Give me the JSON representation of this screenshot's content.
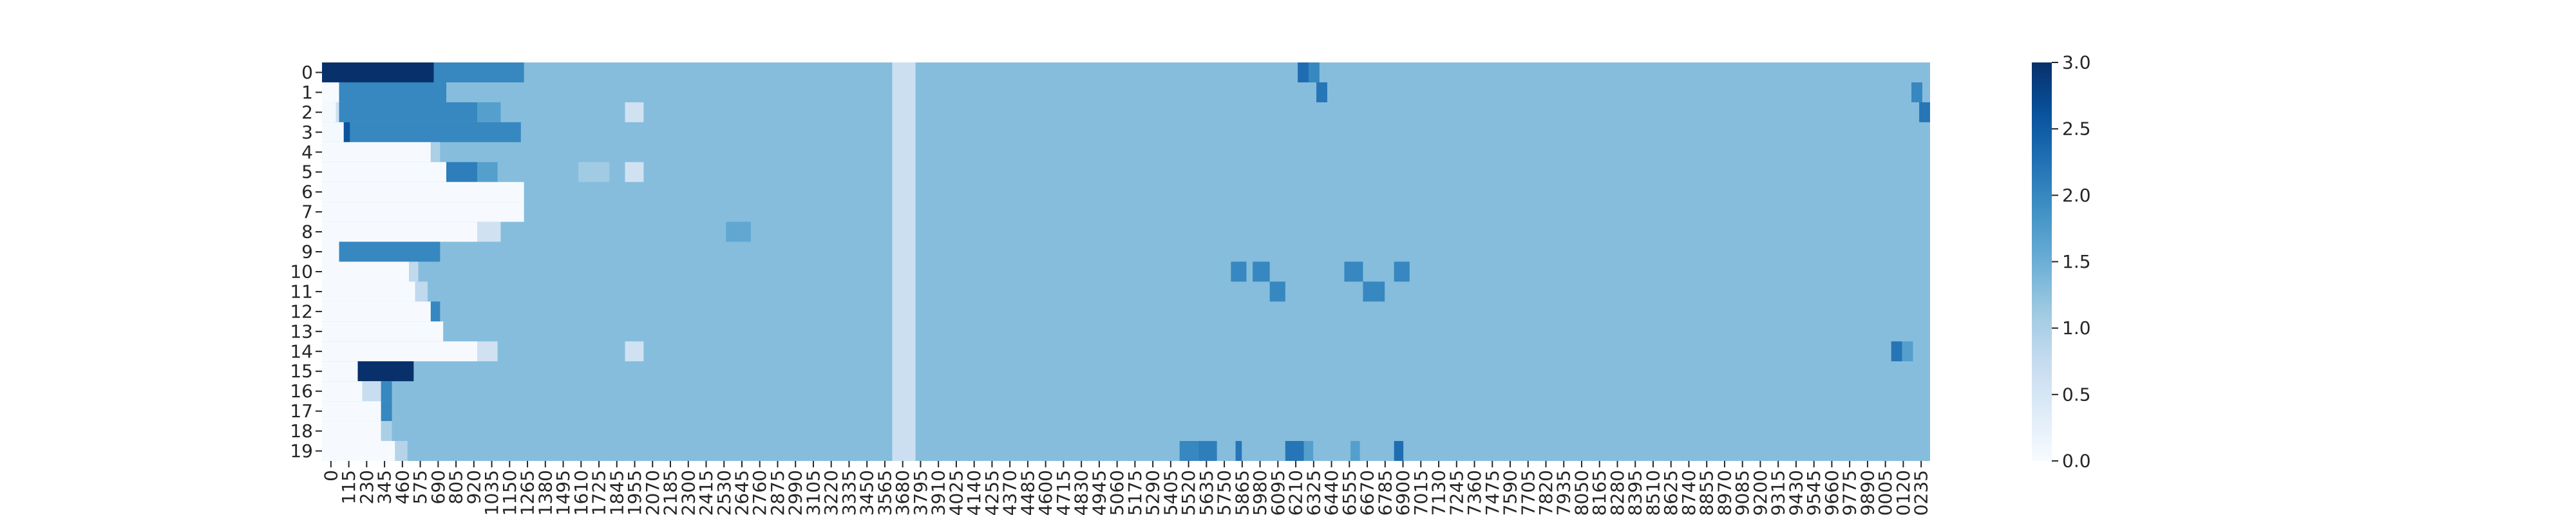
{
  "chart_data": {
    "type": "heatmap",
    "title": "",
    "xlabel": "",
    "ylabel": "",
    "rows": 20,
    "y_ticks": [
      "0",
      "1",
      "2",
      "3",
      "4",
      "5",
      "6",
      "7",
      "8",
      "9",
      "10",
      "11",
      "12",
      "13",
      "14",
      "15",
      "16",
      "17",
      "18",
      "19"
    ],
    "x_ticks": [
      "0",
      "115",
      "230",
      "345",
      "460",
      "575",
      "690",
      "805",
      "920",
      "1035",
      "1150",
      "1265",
      "1380",
      "1495",
      "1610",
      "1725",
      "1845",
      "1955",
      "2070",
      "2185",
      "2300",
      "2415",
      "2530",
      "2645",
      "2760",
      "2875",
      "2990",
      "3105",
      "3220",
      "3335",
      "3450",
      "3565",
      "3680",
      "3795",
      "3910",
      "4025",
      "4140",
      "4255",
      "4370",
      "4485",
      "4600",
      "4715",
      "4830",
      "4945",
      "5060",
      "5175",
      "5290",
      "5405",
      "5520",
      "5635",
      "5750",
      "5865",
      "5980",
      "6095",
      "6210",
      "6325",
      "6440",
      "6555",
      "6670",
      "6785",
      "6900",
      "7015",
      "7130",
      "7245",
      "7360",
      "7475",
      "7590",
      "7705",
      "7820",
      "7935",
      "8050",
      "8165",
      "8280",
      "8395",
      "8510",
      "8625",
      "8740",
      "8855",
      "8970",
      "9085",
      "9200",
      "9315",
      "9430",
      "9545",
      "9660",
      "9775",
      "9890",
      "0005",
      "0120",
      "0235"
    ],
    "x_range": [
      0,
      10350
    ],
    "colorbar": {
      "min": 0.0,
      "max": 3.0,
      "ticks": [
        "0.0",
        "0.5",
        "1.0",
        "1.5",
        "2.0",
        "2.5",
        "3.0"
      ],
      "cmap": "Blues"
    },
    "background_value": 1.3,
    "cells": [
      {
        "row": 0,
        "x0": 0,
        "x1": 720,
        "v": 3.0
      },
      {
        "row": 0,
        "x0": 720,
        "x1": 1300,
        "v": 2.0
      },
      {
        "row": 1,
        "x0": 0,
        "x1": 110,
        "v": 0.0
      },
      {
        "row": 1,
        "x0": 110,
        "x1": 800,
        "v": 2.0
      },
      {
        "row": 2,
        "x0": 0,
        "x1": 90,
        "v": 0.05
      },
      {
        "row": 2,
        "x0": 90,
        "x1": 110,
        "v": 0.6
      },
      {
        "row": 2,
        "x0": 110,
        "x1": 1000,
        "v": 2.0
      },
      {
        "row": 2,
        "x0": 1000,
        "x1": 1150,
        "v": 1.7
      },
      {
        "row": 3,
        "x0": 0,
        "x1": 140,
        "v": 0.05
      },
      {
        "row": 3,
        "x0": 140,
        "x1": 180,
        "v": 2.6
      },
      {
        "row": 3,
        "x0": 180,
        "x1": 1280,
        "v": 2.0
      },
      {
        "row": 4,
        "x0": 0,
        "x1": 700,
        "v": 0.02
      },
      {
        "row": 4,
        "x0": 700,
        "x1": 760,
        "v": 1.0
      },
      {
        "row": 5,
        "x0": 0,
        "x1": 800,
        "v": 0.02
      },
      {
        "row": 5,
        "x0": 800,
        "x1": 1000,
        "v": 2.1
      },
      {
        "row": 5,
        "x0": 1000,
        "x1": 1130,
        "v": 1.7
      },
      {
        "row": 6,
        "x0": 0,
        "x1": 1300,
        "v": 0.02
      },
      {
        "row": 7,
        "x0": 0,
        "x1": 1300,
        "v": 0.02
      },
      {
        "row": 8,
        "x0": 0,
        "x1": 1000,
        "v": 0.02
      },
      {
        "row": 8,
        "x0": 1000,
        "x1": 1150,
        "v": 0.6
      },
      {
        "row": 9,
        "x0": 0,
        "x1": 110,
        "v": 0.02
      },
      {
        "row": 9,
        "x0": 110,
        "x1": 760,
        "v": 2.0
      },
      {
        "row": 10,
        "x0": 0,
        "x1": 560,
        "v": 0.02
      },
      {
        "row": 10,
        "x0": 560,
        "x1": 620,
        "v": 0.8
      },
      {
        "row": 11,
        "x0": 0,
        "x1": 600,
        "v": 0.02
      },
      {
        "row": 11,
        "x0": 600,
        "x1": 680,
        "v": 0.8
      },
      {
        "row": 12,
        "x0": 0,
        "x1": 700,
        "v": 0.02
      },
      {
        "row": 12,
        "x0": 700,
        "x1": 760,
        "v": 2.0
      },
      {
        "row": 13,
        "x0": 0,
        "x1": 780,
        "v": 0.02
      },
      {
        "row": 14,
        "x0": 0,
        "x1": 1000,
        "v": 0.02
      },
      {
        "row": 14,
        "x0": 1000,
        "x1": 1130,
        "v": 0.6
      },
      {
        "row": 15,
        "x0": 0,
        "x1": 230,
        "v": 0.02
      },
      {
        "row": 15,
        "x0": 230,
        "x1": 590,
        "v": 3.0
      },
      {
        "row": 16,
        "x0": 0,
        "x1": 260,
        "v": 0.02
      },
      {
        "row": 16,
        "x0": 260,
        "x1": 380,
        "v": 0.7
      },
      {
        "row": 16,
        "x0": 380,
        "x1": 450,
        "v": 2.0
      },
      {
        "row": 17,
        "x0": 0,
        "x1": 380,
        "v": 0.02
      },
      {
        "row": 17,
        "x0": 380,
        "x1": 450,
        "v": 2.0
      },
      {
        "row": 18,
        "x0": 0,
        "x1": 380,
        "v": 0.02
      },
      {
        "row": 18,
        "x0": 380,
        "x1": 450,
        "v": 1.0
      },
      {
        "row": 19,
        "x0": 0,
        "x1": 470,
        "v": 0.02
      },
      {
        "row": 19,
        "x0": 470,
        "x1": 550,
        "v": 0.9
      },
      {
        "row": 0,
        "x0": 6280,
        "x1": 6350,
        "v": 2.3
      },
      {
        "row": 0,
        "x0": 6350,
        "x1": 6420,
        "v": 2.0
      },
      {
        "row": 1,
        "x0": 6400,
        "x1": 6470,
        "v": 2.2
      },
      {
        "row": 1,
        "x0": 10230,
        "x1": 10300,
        "v": 2.0
      },
      {
        "row": 2,
        "x0": 10280,
        "x1": 10350,
        "v": 2.2
      },
      {
        "row": 2,
        "x0": 1950,
        "x1": 2070,
        "v": 0.6
      },
      {
        "row": 5,
        "x0": 1650,
        "x1": 1850,
        "v": 1.1
      },
      {
        "row": 5,
        "x0": 1950,
        "x1": 2070,
        "v": 0.6
      },
      {
        "row": 8,
        "x0": 2600,
        "x1": 2760,
        "v": 1.6
      },
      {
        "row": 10,
        "x0": 5850,
        "x1": 5950,
        "v": 2.0
      },
      {
        "row": 10,
        "x0": 5990,
        "x1": 6100,
        "v": 2.0
      },
      {
        "row": 10,
        "x0": 6580,
        "x1": 6700,
        "v": 2.0
      },
      {
        "row": 10,
        "x0": 6900,
        "x1": 7000,
        "v": 2.0
      },
      {
        "row": 11,
        "x0": 6100,
        "x1": 6200,
        "v": 2.0
      },
      {
        "row": 11,
        "x0": 6700,
        "x1": 6840,
        "v": 2.0
      },
      {
        "row": 14,
        "x0": 1950,
        "x1": 2070,
        "v": 0.6
      },
      {
        "row": 14,
        "x0": 10100,
        "x1": 10170,
        "v": 2.2
      },
      {
        "row": 14,
        "x0": 10170,
        "x1": 10240,
        "v": 1.7
      },
      {
        "row": 19,
        "x0": 5520,
        "x1": 5640,
        "v": 2.0
      },
      {
        "row": 19,
        "x0": 5640,
        "x1": 5760,
        "v": 2.1
      },
      {
        "row": 19,
        "x0": 5880,
        "x1": 5920,
        "v": 2.2
      },
      {
        "row": 19,
        "x0": 6200,
        "x1": 6320,
        "v": 2.2
      },
      {
        "row": 19,
        "x0": 6320,
        "x1": 6380,
        "v": 1.7
      },
      {
        "row": 19,
        "x0": 6620,
        "x1": 6680,
        "v": 1.7
      },
      {
        "row": 19,
        "x0": 6900,
        "x1": 6960,
        "v": 2.3
      }
    ],
    "column_bands": [
      {
        "x0": 3670,
        "x1": 3820,
        "v": 0.65
      }
    ],
    "annotations": []
  }
}
